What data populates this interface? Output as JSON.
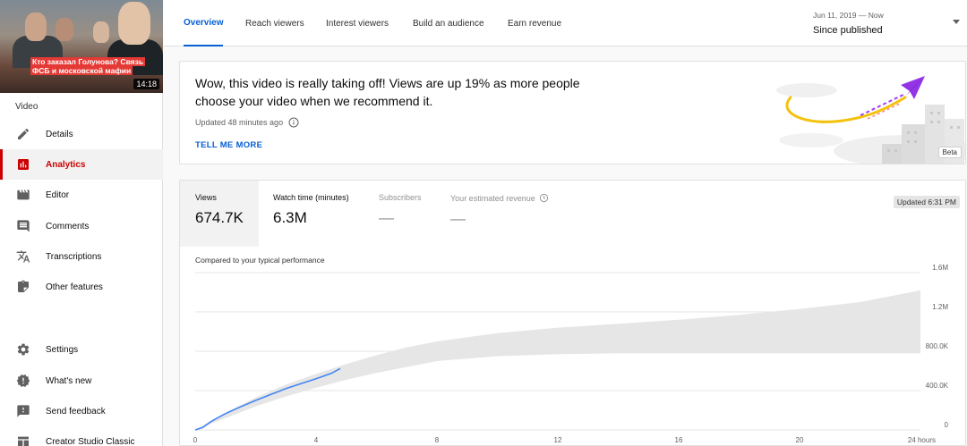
{
  "video": {
    "thumbnail_caption": "Кто заказал Голунова? Связь ФСБ и московской мафии",
    "duration": "14:18"
  },
  "sidebar": {
    "section_label": "Video",
    "items": [
      {
        "label": "Details",
        "icon": "pencil-icon",
        "active": false
      },
      {
        "label": "Analytics",
        "icon": "analytics-icon",
        "active": true
      },
      {
        "label": "Editor",
        "icon": "clapperboard-icon",
        "active": false
      },
      {
        "label": "Comments",
        "icon": "comment-icon",
        "active": false
      },
      {
        "label": "Transcriptions",
        "icon": "translate-icon",
        "active": false
      },
      {
        "label": "Other features",
        "icon": "other-features-icon",
        "active": false
      }
    ],
    "bottom_items": [
      {
        "label": "Settings",
        "icon": "gear-icon"
      },
      {
        "label": "What's new",
        "icon": "badge-icon"
      },
      {
        "label": "Send feedback",
        "icon": "feedback-icon"
      },
      {
        "label": "Creator Studio Classic",
        "icon": "classic-icon"
      }
    ],
    "accent_color": "#cc0000"
  },
  "header": {
    "tabs": [
      {
        "label": "Overview",
        "active": true
      },
      {
        "label": "Reach viewers",
        "active": false
      },
      {
        "label": "Interest viewers",
        "active": false
      },
      {
        "label": "Build an audience",
        "active": false
      },
      {
        "label": "Earn revenue",
        "active": false
      }
    ],
    "date_range": {
      "range": "Jun 11, 2019 — Now",
      "label": "Since published"
    },
    "accent_color": "#065fd4"
  },
  "insight": {
    "message": "Wow, this video is really taking off! Views are up 19% as more people choose your video when we recommend it.",
    "updated": "Updated 48 minutes ago",
    "action": "TELL ME MORE",
    "beta": "Beta"
  },
  "metrics": {
    "tabs": [
      {
        "label": "Views",
        "value": "674.7K",
        "active": true,
        "available": true
      },
      {
        "label": "Watch time (minutes)",
        "value": "6.3M",
        "active": false,
        "available": true
      },
      {
        "label": "Subscribers",
        "value": "—",
        "active": false,
        "available": false
      },
      {
        "label": "Your estimated revenue",
        "value": "—",
        "active": false,
        "available": false
      }
    ],
    "updated_badge": "Updated 6:31 PM",
    "compared_label": "Compared to your typical performance"
  },
  "chart_data": {
    "type": "line",
    "x_tick_labels": [
      "0",
      "4",
      "8",
      "12",
      "16",
      "20",
      "24 hours"
    ],
    "x_ticks": [
      0,
      4,
      8,
      12,
      16,
      20,
      24
    ],
    "xlim": [
      0,
      24
    ],
    "y_tick_labels": [
      "0",
      "400.0K",
      "800.0K",
      "1.2M",
      "1.6M"
    ],
    "y_ticks": [
      0,
      400000,
      800000,
      1200000,
      1600000
    ],
    "ylim": [
      0,
      1600000
    ],
    "grid": true,
    "series": [
      {
        "kind": "line",
        "color": "#4285f4",
        "x": [
          0,
          0.25,
          0.5,
          0.75,
          1,
          1.5,
          2,
          2.5,
          3,
          3.5,
          4,
          4.5,
          4.8
        ],
        "y": [
          0,
          25000,
          80000,
          125000,
          165000,
          235000,
          300000,
          360000,
          420000,
          470000,
          520000,
          575000,
          625000
        ]
      },
      {
        "kind": "band",
        "color": "#e6e6e6",
        "x": [
          0,
          1,
          2,
          3,
          4,
          5,
          6,
          7,
          8,
          10,
          12,
          14,
          16,
          18,
          20,
          22,
          24
        ],
        "lower": [
          0,
          120000,
          240000,
          340000,
          430000,
          510000,
          580000,
          640000,
          700000,
          750000,
          770000,
          780000,
          780000,
          780000,
          780000,
          780000,
          780000
        ],
        "upper": [
          0,
          175000,
          330000,
          460000,
          570000,
          670000,
          760000,
          840000,
          900000,
          985000,
          1040000,
          1080000,
          1120000,
          1170000,
          1230000,
          1300000,
          1420000
        ]
      }
    ]
  }
}
